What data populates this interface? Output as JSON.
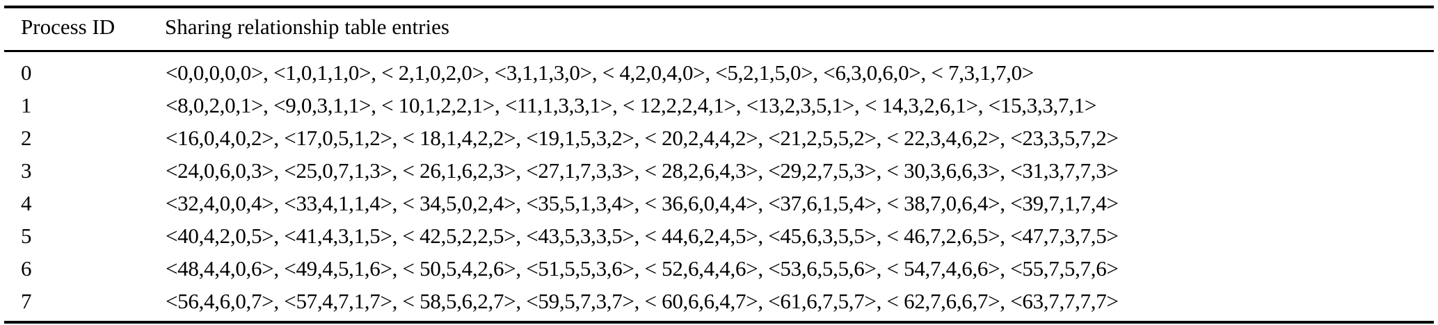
{
  "colors": {
    "text": "#000000",
    "background": "#ffffff",
    "rule": "#000000"
  },
  "table": {
    "columns": [
      "Process ID",
      "Sharing relationship table entries"
    ],
    "rows": [
      {
        "process_id": "0",
        "entries": "<0,0,0,0,0>, <1,0,1,1,0>, < 2,1,0,2,0>, <3,1,1,3,0>, < 4,2,0,4,0>, <5,2,1,5,0>, <6,3,0,6,0>, < 7,3,1,7,0>"
      },
      {
        "process_id": "1",
        "entries": "<8,0,2,0,1>, <9,0,3,1,1>, < 10,1,2,2,1>, <11,1,3,3,1>, < 12,2,2,4,1>, <13,2,3,5,1>, < 14,3,2,6,1>, <15,3,3,7,1>"
      },
      {
        "process_id": "2",
        "entries": "<16,0,4,0,2>, <17,0,5,1,2>, < 18,1,4,2,2>, <19,1,5,3,2>, < 20,2,4,4,2>, <21,2,5,5,2>, < 22,3,4,6,2>, <23,3,5,7,2>"
      },
      {
        "process_id": "3",
        "entries": "<24,0,6,0,3>, <25,0,7,1,3>, < 26,1,6,2,3>, <27,1,7,3,3>, < 28,2,6,4,3>, <29,2,7,5,3>, < 30,3,6,6,3>, <31,3,7,7,3>"
      },
      {
        "process_id": "4",
        "entries": "<32,4,0,0,4>, <33,4,1,1,4>, < 34,5,0,2,4>, <35,5,1,3,4>, < 36,6,0,4,4>, <37,6,1,5,4>, < 38,7,0,6,4>, <39,7,1,7,4>"
      },
      {
        "process_id": "5",
        "entries": "<40,4,2,0,5>, <41,4,3,1,5>, < 42,5,2,2,5>, <43,5,3,3,5>, < 44,6,2,4,5>, <45,6,3,5,5>, < 46,7,2,6,5>, <47,7,3,7,5>"
      },
      {
        "process_id": "6",
        "entries": "<48,4,4,0,6>, <49,4,5,1,6>, < 50,5,4,2,6>, <51,5,5,3,6>, < 52,6,4,4,6>, <53,6,5,5,6>, < 54,7,4,6,6>, <55,7,5,7,6>"
      },
      {
        "process_id": "7",
        "entries": "<56,4,6,0,7>, <57,4,7,1,7>, < 58,5,6,2,7>, <59,5,7,3,7>, < 60,6,6,4,7>, <61,6,7,5,7>, < 62,7,6,6,7>, <63,7,7,7,7>"
      }
    ]
  }
}
